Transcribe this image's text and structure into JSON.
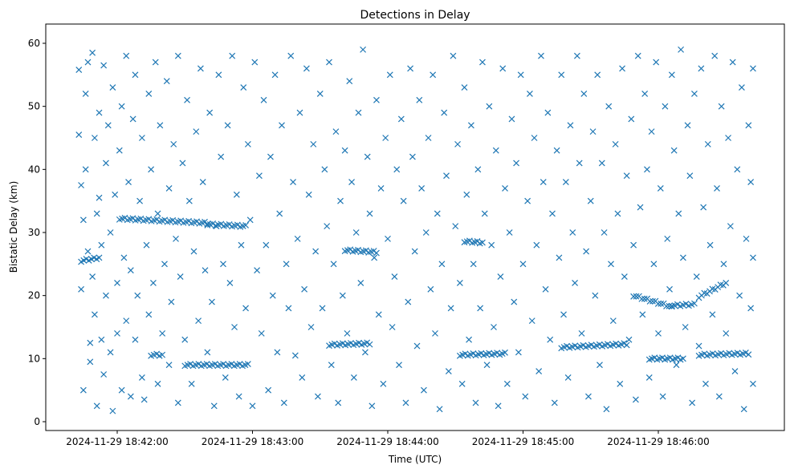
{
  "chart_data": {
    "type": "scatter",
    "title": "Detections in Delay",
    "xlabel": "Time (UTC)",
    "ylabel": "Bistatic Delay (km)",
    "x_units": "seconds after 2024-11-29 18:41:00",
    "xlim": [
      40,
      345
    ],
    "ylim": [
      -1.5,
      62.5
    ],
    "x_ticks": [
      {
        "value": 60,
        "label": "2024-11-29 18:42:00"
      },
      {
        "value": 120,
        "label": "2024-11-29 18:43:00"
      },
      {
        "value": 180,
        "label": "2024-11-29 18:44:00"
      },
      {
        "value": 240,
        "label": "2024-11-29 18:45:00"
      },
      {
        "value": 300,
        "label": "2024-11-29 18:46:00"
      }
    ],
    "y_ticks": [
      0,
      10,
      20,
      30,
      40,
      50,
      60
    ],
    "marker": "x",
    "color": "#1f77b4",
    "grid": false,
    "tracks": [
      {
        "t": [
          61,
          100
        ],
        "d": [
          32.2,
          31.5
        ]
      },
      {
        "t": [
          100,
          117
        ],
        "d": [
          31.3,
          31.0
        ]
      },
      {
        "t": [
          90,
          118
        ],
        "d": [
          9.0,
          9.0
        ]
      },
      {
        "t": [
          154,
          172
        ],
        "d": [
          12.2,
          12.4
        ]
      },
      {
        "t": [
          161,
          175
        ],
        "d": [
          27.2,
          26.9
        ]
      },
      {
        "t": [
          214,
          222
        ],
        "d": [
          28.6,
          28.4
        ]
      },
      {
        "t": [
          212,
          232
        ],
        "d": [
          10.6,
          10.8
        ]
      },
      {
        "t": [
          257,
          286
        ],
        "d": [
          11.8,
          12.3
        ]
      },
      {
        "t": [
          289,
          306
        ],
        "d": [
          20.0,
          18.2
        ]
      },
      {
        "t": [
          306,
          316
        ],
        "d": [
          18.4,
          18.6
        ]
      },
      {
        "t": [
          318,
          330
        ],
        "d": [
          19.8,
          22.0
        ]
      },
      {
        "t": [
          318,
          340
        ],
        "d": [
          10.6,
          10.8
        ]
      },
      {
        "t": [
          296,
          311
        ],
        "d": [
          10.0,
          10.0
        ]
      },
      {
        "t": [
          44,
          52
        ],
        "d": [
          25.5,
          26.0
        ]
      },
      {
        "t": [
          75,
          80
        ],
        "d": [
          10.6,
          10.6
        ]
      }
    ],
    "points": [
      [
        43,
        45.5
      ],
      [
        43,
        55.8
      ],
      [
        44,
        37.5
      ],
      [
        44,
        21
      ],
      [
        45,
        32
      ],
      [
        45,
        5
      ],
      [
        46,
        40
      ],
      [
        46,
        52
      ],
      [
        47,
        57
      ],
      [
        47,
        27
      ],
      [
        48,
        12.5
      ],
      [
        48,
        9.5
      ],
      [
        49,
        23
      ],
      [
        49,
        58.5
      ],
      [
        50,
        17
      ],
      [
        50,
        45
      ],
      [
        51,
        2.5
      ],
      [
        51,
        33
      ],
      [
        52,
        35.5
      ],
      [
        52,
        49
      ],
      [
        53,
        13
      ],
      [
        53,
        28
      ],
      [
        54,
        56.5
      ],
      [
        54,
        7.5
      ],
      [
        55,
        41
      ],
      [
        55,
        20
      ],
      [
        56,
        47
      ],
      [
        57,
        30
      ],
      [
        57,
        11
      ],
      [
        58,
        53
      ],
      [
        58,
        1.7
      ],
      [
        59,
        36
      ],
      [
        60,
        22
      ],
      [
        60,
        14
      ],
      [
        61,
        43
      ],
      [
        62,
        5
      ],
      [
        62,
        50
      ],
      [
        63,
        26
      ],
      [
        64,
        58
      ],
      [
        64,
        16
      ],
      [
        65,
        38
      ],
      [
        66,
        4
      ],
      [
        66,
        24
      ],
      [
        67,
        48
      ],
      [
        68,
        13
      ],
      [
        68,
        55
      ],
      [
        69,
        20
      ],
      [
        70,
        35
      ],
      [
        71,
        7
      ],
      [
        71,
        45
      ],
      [
        72,
        3.5
      ],
      [
        73,
        28
      ],
      [
        74,
        52
      ],
      [
        74,
        17
      ],
      [
        75,
        40
      ],
      [
        76,
        22
      ],
      [
        77,
        57
      ],
      [
        78,
        33
      ],
      [
        78,
        6
      ],
      [
        79,
        47
      ],
      [
        80,
        14
      ],
      [
        81,
        25
      ],
      [
        82,
        54
      ],
      [
        83,
        37
      ],
      [
        83,
        9
      ],
      [
        84,
        19
      ],
      [
        85,
        44
      ],
      [
        86,
        29
      ],
      [
        87,
        3
      ],
      [
        87,
        58
      ],
      [
        88,
        23
      ],
      [
        89,
        41
      ],
      [
        90,
        13
      ],
      [
        91,
        51
      ],
      [
        92,
        35
      ],
      [
        93,
        6
      ],
      [
        94,
        27
      ],
      [
        95,
        46
      ],
      [
        96,
        16
      ],
      [
        97,
        56
      ],
      [
        98,
        38
      ],
      [
        99,
        24
      ],
      [
        100,
        11
      ],
      [
        101,
        49
      ],
      [
        102,
        19
      ],
      [
        103,
        2.5
      ],
      [
        104,
        31
      ],
      [
        105,
        55
      ],
      [
        106,
        42
      ],
      [
        107,
        25
      ],
      [
        108,
        7
      ],
      [
        109,
        47
      ],
      [
        110,
        22
      ],
      [
        111,
        58
      ],
      [
        112,
        15
      ],
      [
        113,
        36
      ],
      [
        114,
        4
      ],
      [
        115,
        28
      ],
      [
        116,
        53
      ],
      [
        117,
        18
      ],
      [
        118,
        44
      ],
      [
        119,
        32
      ],
      [
        120,
        2.5
      ],
      [
        121,
        57
      ],
      [
        122,
        24
      ],
      [
        123,
        39
      ],
      [
        124,
        14
      ],
      [
        125,
        51
      ],
      [
        126,
        28
      ],
      [
        127,
        5
      ],
      [
        128,
        42
      ],
      [
        129,
        20
      ],
      [
        130,
        55
      ],
      [
        131,
        11
      ],
      [
        132,
        33
      ],
      [
        133,
        47
      ],
      [
        134,
        3
      ],
      [
        135,
        25
      ],
      [
        136,
        18
      ],
      [
        137,
        58
      ],
      [
        138,
        38
      ],
      [
        139,
        10.5
      ],
      [
        140,
        29
      ],
      [
        141,
        49
      ],
      [
        142,
        7
      ],
      [
        143,
        21
      ],
      [
        144,
        56
      ],
      [
        145,
        36
      ],
      [
        146,
        15
      ],
      [
        147,
        44
      ],
      [
        148,
        27
      ],
      [
        149,
        4
      ],
      [
        150,
        52
      ],
      [
        151,
        18
      ],
      [
        152,
        40
      ],
      [
        153,
        31
      ],
      [
        154,
        57
      ],
      [
        155,
        9
      ],
      [
        156,
        25
      ],
      [
        157,
        46
      ],
      [
        158,
        3
      ],
      [
        159,
        35
      ],
      [
        160,
        20
      ],
      [
        161,
        43
      ],
      [
        162,
        14
      ],
      [
        163,
        54
      ],
      [
        164,
        38
      ],
      [
        165,
        7
      ],
      [
        166,
        30
      ],
      [
        167,
        49
      ],
      [
        168,
        22
      ],
      [
        169,
        59
      ],
      [
        170,
        11
      ],
      [
        171,
        42
      ],
      [
        172,
        33
      ],
      [
        173,
        2.5
      ],
      [
        174,
        26
      ],
      [
        175,
        51
      ],
      [
        176,
        17
      ],
      [
        177,
        37
      ],
      [
        178,
        6
      ],
      [
        179,
        45
      ],
      [
        180,
        29
      ],
      [
        181,
        55
      ],
      [
        182,
        15
      ],
      [
        183,
        23
      ],
      [
        184,
        40
      ],
      [
        185,
        9
      ],
      [
        186,
        48
      ],
      [
        187,
        35
      ],
      [
        188,
        3
      ],
      [
        189,
        19
      ],
      [
        190,
        56
      ],
      [
        191,
        42
      ],
      [
        192,
        27
      ],
      [
        193,
        12
      ],
      [
        194,
        51
      ],
      [
        195,
        37
      ],
      [
        196,
        5
      ],
      [
        197,
        30
      ],
      [
        198,
        45
      ],
      [
        199,
        21
      ],
      [
        200,
        55
      ],
      [
        201,
        14
      ],
      [
        202,
        33
      ],
      [
        203,
        2
      ],
      [
        204,
        25
      ],
      [
        205,
        49
      ],
      [
        206,
        39
      ],
      [
        207,
        8
      ],
      [
        208,
        18
      ],
      [
        209,
        58
      ],
      [
        210,
        31
      ],
      [
        211,
        44
      ],
      [
        212,
        22
      ],
      [
        213,
        6
      ],
      [
        214,
        53
      ],
      [
        215,
        36
      ],
      [
        216,
        13
      ],
      [
        217,
        47
      ],
      [
        218,
        25
      ],
      [
        219,
        3
      ],
      [
        220,
        40
      ],
      [
        221,
        18
      ],
      [
        222,
        57
      ],
      [
        223,
        33
      ],
      [
        224,
        9
      ],
      [
        225,
        50
      ],
      [
        226,
        28
      ],
      [
        227,
        15
      ],
      [
        228,
        43
      ],
      [
        229,
        2.5
      ],
      [
        230,
        23
      ],
      [
        231,
        56
      ],
      [
        232,
        37
      ],
      [
        233,
        6
      ],
      [
        234,
        30
      ],
      [
        235,
        48
      ],
      [
        236,
        19
      ],
      [
        237,
        41
      ],
      [
        238,
        11
      ],
      [
        239,
        55
      ],
      [
        240,
        25
      ],
      [
        241,
        4
      ],
      [
        242,
        35
      ],
      [
        243,
        52
      ],
      [
        244,
        16
      ],
      [
        245,
        45
      ],
      [
        246,
        28
      ],
      [
        247,
        8
      ],
      [
        248,
        58
      ],
      [
        249,
        38
      ],
      [
        250,
        21
      ],
      [
        251,
        49
      ],
      [
        252,
        13
      ],
      [
        253,
        33
      ],
      [
        254,
        3
      ],
      [
        255,
        43
      ],
      [
        256,
        26
      ],
      [
        257,
        55
      ],
      [
        258,
        17
      ],
      [
        259,
        38
      ],
      [
        260,
        7
      ],
      [
        261,
        47
      ],
      [
        262,
        30
      ],
      [
        263,
        22
      ],
      [
        264,
        58
      ],
      [
        265,
        41
      ],
      [
        266,
        14
      ],
      [
        267,
        52
      ],
      [
        268,
        27
      ],
      [
        269,
        4
      ],
      [
        270,
        35
      ],
      [
        271,
        46
      ],
      [
        272,
        20
      ],
      [
        273,
        55
      ],
      [
        274,
        9
      ],
      [
        275,
        41
      ],
      [
        276,
        30
      ],
      [
        277,
        2
      ],
      [
        278,
        50
      ],
      [
        279,
        25
      ],
      [
        280,
        16
      ],
      [
        281,
        44
      ],
      [
        282,
        33
      ],
      [
        283,
        6
      ],
      [
        284,
        56
      ],
      [
        285,
        23
      ],
      [
        286,
        39
      ],
      [
        287,
        13
      ],
      [
        288,
        48
      ],
      [
        289,
        28
      ],
      [
        290,
        3.5
      ],
      [
        291,
        58
      ],
      [
        292,
        34
      ],
      [
        293,
        17
      ],
      [
        294,
        52
      ],
      [
        295,
        40
      ],
      [
        296,
        7
      ],
      [
        297,
        46
      ],
      [
        298,
        25
      ],
      [
        299,
        57
      ],
      [
        300,
        14
      ],
      [
        301,
        37
      ],
      [
        302,
        4
      ],
      [
        303,
        50
      ],
      [
        304,
        29
      ],
      [
        305,
        21
      ],
      [
        306,
        55
      ],
      [
        307,
        43
      ],
      [
        308,
        9
      ],
      [
        309,
        33
      ],
      [
        310,
        59
      ],
      [
        311,
        26
      ],
      [
        312,
        15
      ],
      [
        313,
        47
      ],
      [
        314,
        39
      ],
      [
        315,
        3
      ],
      [
        316,
        52
      ],
      [
        317,
        23
      ],
      [
        318,
        12
      ],
      [
        319,
        56
      ],
      [
        320,
        34
      ],
      [
        321,
        6
      ],
      [
        322,
        44
      ],
      [
        323,
        28
      ],
      [
        324,
        17
      ],
      [
        325,
        58
      ],
      [
        326,
        37
      ],
      [
        327,
        4
      ],
      [
        328,
        50
      ],
      [
        329,
        25
      ],
      [
        330,
        14
      ],
      [
        331,
        45
      ],
      [
        332,
        31
      ],
      [
        333,
        57
      ],
      [
        334,
        8
      ],
      [
        335,
        40
      ],
      [
        336,
        20
      ],
      [
        337,
        53
      ],
      [
        338,
        2
      ],
      [
        339,
        29
      ],
      [
        340,
        47
      ],
      [
        341,
        18
      ],
      [
        341,
        38
      ],
      [
        342,
        56
      ],
      [
        342,
        26
      ],
      [
        342,
        6
      ]
    ]
  }
}
